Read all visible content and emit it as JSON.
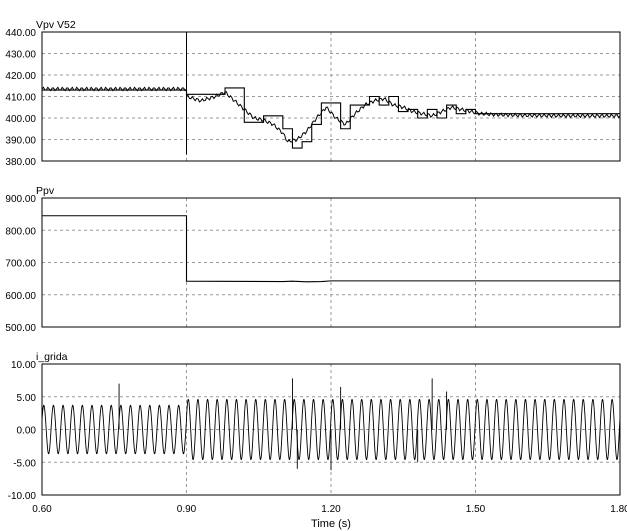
{
  "chart_data": [
    {
      "type": "line",
      "series": [
        {
          "name": "Vpv",
          "style": "trace-ripple",
          "points": [
            [
              0.6,
              413.5
            ],
            [
              0.9,
              413.5
            ],
            [
              0.9,
              410
            ],
            [
              0.93,
              408
            ],
            [
              0.96,
              410
            ],
            [
              0.98,
              412
            ],
            [
              1.0,
              408
            ],
            [
              1.02,
              404
            ],
            [
              1.04,
              400
            ],
            [
              1.06,
              399
            ],
            [
              1.08,
              397
            ],
            [
              1.1,
              393
            ],
            [
              1.11,
              389
            ],
            [
              1.13,
              390
            ],
            [
              1.15,
              394
            ],
            [
              1.17,
              400
            ],
            [
              1.19,
              405
            ],
            [
              1.21,
              400
            ],
            [
              1.23,
              397
            ],
            [
              1.25,
              402
            ],
            [
              1.27,
              406
            ],
            [
              1.29,
              408
            ],
            [
              1.31,
              409
            ],
            [
              1.33,
              406
            ],
            [
              1.35,
              405
            ],
            [
              1.37,
              403
            ],
            [
              1.39,
              402
            ],
            [
              1.41,
              401
            ],
            [
              1.43,
              403
            ],
            [
              1.45,
              405
            ],
            [
              1.47,
              404
            ],
            [
              1.49,
              403
            ],
            [
              1.51,
              402
            ],
            [
              1.55,
              401.5
            ],
            [
              1.6,
              401.2
            ],
            [
              1.7,
              401
            ],
            [
              1.8,
              401
            ]
          ]
        },
        {
          "name": "V52",
          "style": "step",
          "points": [
            [
              0.6,
              413
            ],
            [
              0.9,
              413
            ],
            [
              0.9,
              411
            ],
            [
              0.98,
              411
            ],
            [
              0.98,
              414
            ],
            [
              1.02,
              414
            ],
            [
              1.02,
              398
            ],
            [
              1.06,
              398
            ],
            [
              1.06,
              401
            ],
            [
              1.1,
              401
            ],
            [
              1.1,
              395
            ],
            [
              1.12,
              395
            ],
            [
              1.12,
              386
            ],
            [
              1.14,
              386
            ],
            [
              1.14,
              389
            ],
            [
              1.16,
              389
            ],
            [
              1.16,
              397
            ],
            [
              1.18,
              397
            ],
            [
              1.18,
              407
            ],
            [
              1.22,
              407
            ],
            [
              1.22,
              395
            ],
            [
              1.24,
              395
            ],
            [
              1.24,
              406
            ],
            [
              1.28,
              406
            ],
            [
              1.28,
              410
            ],
            [
              1.3,
              410
            ],
            [
              1.3,
              406
            ],
            [
              1.32,
              406
            ],
            [
              1.32,
              410
            ],
            [
              1.34,
              410
            ],
            [
              1.34,
              403
            ],
            [
              1.36,
              403
            ],
            [
              1.36,
              404
            ],
            [
              1.38,
              404
            ],
            [
              1.38,
              400
            ],
            [
              1.4,
              400
            ],
            [
              1.4,
              404
            ],
            [
              1.42,
              404
            ],
            [
              1.42,
              400
            ],
            [
              1.44,
              400
            ],
            [
              1.44,
              406
            ],
            [
              1.46,
              406
            ],
            [
              1.46,
              402
            ],
            [
              1.48,
              402
            ],
            [
              1.48,
              404
            ],
            [
              1.5,
              404
            ],
            [
              1.5,
              402
            ],
            [
              1.8,
              402
            ]
          ]
        }
      ],
      "spike": {
        "x": 0.9,
        "y_from": 383,
        "y_to": 440
      },
      "ylabel": "Vpv    V52",
      "yticks": [
        "440.00",
        "430.00",
        "420.00",
        "410.00",
        "400.00",
        "390.00",
        "380.00"
      ],
      "ytick_values": [
        440,
        430,
        420,
        410,
        400,
        390,
        380
      ],
      "ylim": [
        380,
        440
      ],
      "xlim": [
        0.6,
        1.8
      ],
      "grid": true
    },
    {
      "type": "line",
      "series": [
        {
          "name": "Ppv",
          "style": "plain",
          "points": [
            [
              0.6,
              845
            ],
            [
              0.9,
              845
            ],
            [
              0.9,
              642
            ],
            [
              1.1,
              641
            ],
            [
              1.12,
              642
            ],
            [
              1.15,
              640
            ],
            [
              1.18,
              641
            ],
            [
              1.2,
              643
            ],
            [
              1.8,
              643
            ]
          ]
        }
      ],
      "ylabel": "Ppv",
      "yticks": [
        "900.00",
        "800.00",
        "700.00",
        "600.00",
        "500.00"
      ],
      "ytick_values": [
        900,
        800,
        700,
        600,
        500
      ],
      "ylim": [
        500,
        900
      ],
      "xlim": [
        0.6,
        1.8
      ],
      "grid": true
    },
    {
      "type": "line",
      "series": [
        {
          "name": "i_grida",
          "style": "sine",
          "segments": [
            {
              "x_from": 0.6,
              "x_to": 0.9,
              "amplitude": 3.7
            },
            {
              "x_from": 0.9,
              "x_to": 1.8,
              "amplitude": 4.6
            }
          ],
          "frequency": 50,
          "spikes": [
            [
              0.76,
              7.0
            ],
            [
              1.12,
              7.8
            ],
            [
              1.13,
              -6.0
            ],
            [
              1.2,
              -6.2
            ],
            [
              1.22,
              6.5
            ],
            [
              1.38,
              -5.0
            ],
            [
              1.41,
              7.8
            ],
            [
              1.44,
              5.8
            ]
          ]
        }
      ],
      "ylabel": "i_grida",
      "yticks": [
        "10.00",
        "5.00",
        "0.00",
        "-5.00",
        "-10.00"
      ],
      "ytick_values": [
        10,
        5,
        0,
        -5,
        -10
      ],
      "ylim": [
        -10,
        10
      ],
      "xlim": [
        0.6,
        1.8
      ],
      "grid": true
    }
  ],
  "x_axis": {
    "label": "Time (s)",
    "ticks": [
      "0.60",
      "0.90",
      "1.20",
      "1.50",
      "1.80"
    ],
    "tick_values": [
      0.6,
      0.9,
      1.2,
      1.5,
      1.8
    ]
  }
}
